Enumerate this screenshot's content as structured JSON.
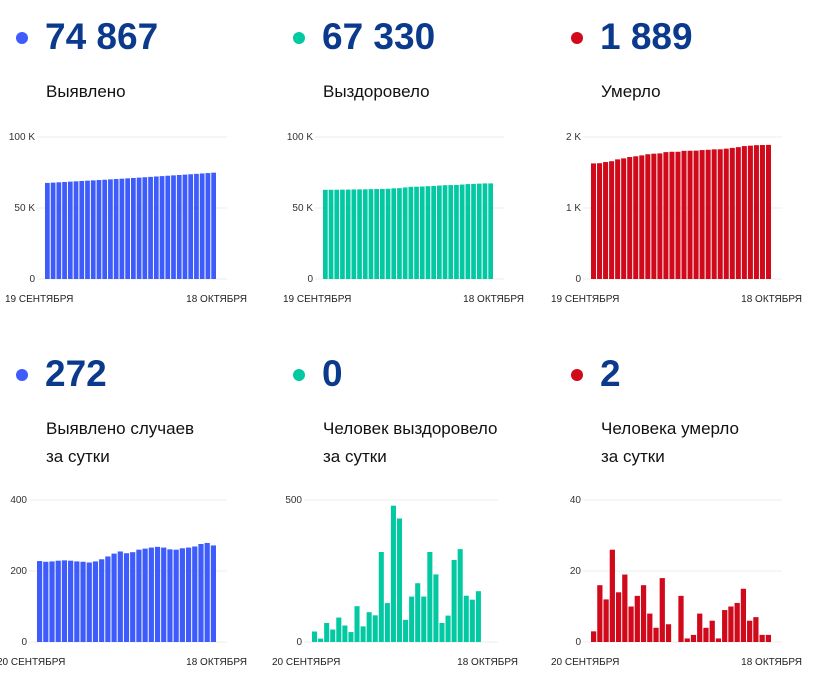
{
  "colors": {
    "confirmed": "#3d5cfb",
    "recovered": "#03c9a3",
    "deaths": "#d0091b",
    "number": "#0b3a8d"
  },
  "stats": [
    {
      "value": "74 867",
      "label": "Выявлено",
      "color": "confirmed"
    },
    {
      "value": "67 330",
      "label": "Выздоровело",
      "color": "recovered"
    },
    {
      "value": "1 889",
      "label": "Умерло",
      "color": "deaths"
    },
    {
      "value": "272",
      "label": "Выявлено случаев",
      "label2": "за сутки",
      "color": "confirmed"
    },
    {
      "value": "0",
      "label": "Человек выздоровело",
      "label2": "за сутки",
      "color": "recovered"
    },
    {
      "value": "2",
      "label": "Человека умерло",
      "label2": "за сутки",
      "color": "deaths"
    }
  ],
  "chart_data": [
    {
      "type": "bar",
      "color": "confirmed",
      "ylim": [
        0,
        100000
      ],
      "yticks": [
        {
          "v": 0,
          "t": "0"
        },
        {
          "v": 50000,
          "t": "50 K"
        },
        {
          "v": 100000,
          "t": "100 K"
        }
      ],
      "x_start": "19 СЕНТЯБРЯ",
      "x_end": "18 ОКТЯБРЯ",
      "values": [
        67643,
        67871,
        68097,
        68324,
        68553,
        68783,
        69012,
        69239,
        69465,
        69689,
        69916,
        70149,
        70390,
        70639,
        70894,
        71144,
        71397,
        71657,
        71920,
        72186,
        72454,
        72720,
        72981,
        73241,
        73505,
        73771,
        74040,
        74316,
        74595,
        74867
      ]
    },
    {
      "type": "bar",
      "color": "recovered",
      "ylim": [
        0,
        100000
      ],
      "yticks": [
        {
          "v": 0,
          "t": "0"
        },
        {
          "v": 50000,
          "t": "50 K"
        },
        {
          "v": 100000,
          "t": "100 K"
        }
      ],
      "x_start": "19 СЕНТЯБРЯ",
      "x_end": "18 ОКТЯБРЯ",
      "values": [
        62815,
        62852,
        62864,
        62931,
        62975,
        63061,
        63119,
        63154,
        63280,
        63335,
        63440,
        63534,
        63851,
        63988,
        64468,
        64903,
        64981,
        65141,
        65348,
        65508,
        65825,
        66063,
        66130,
        66223,
        66512,
        66839,
        67002,
        67151,
        67330,
        67330
      ]
    },
    {
      "type": "bar",
      "color": "deaths",
      "ylim": [
        0,
        2000
      ],
      "yticks": [
        {
          "v": 0,
          "t": "0"
        },
        {
          "v": 1000,
          "t": "1 K"
        },
        {
          "v": 2000,
          "t": "2 K"
        }
      ],
      "x_start": "19 СЕНТЯБРЯ",
      "x_end": "18 ОКТЯБРЯ",
      "values": [
        1628,
        1631,
        1647,
        1659,
        1685,
        1699,
        1718,
        1728,
        1741,
        1757,
        1765,
        1769,
        1787,
        1792,
        1792,
        1805,
        1806,
        1808,
        1816,
        1820,
        1826,
        1827,
        1836,
        1846,
        1857,
        1872,
        1878,
        1885,
        1887,
        1889
      ]
    },
    {
      "type": "bar",
      "color": "confirmed",
      "ylim": [
        0,
        400
      ],
      "yticks": [
        {
          "v": 0,
          "t": "0"
        },
        {
          "v": 200,
          "t": "200"
        },
        {
          "v": 400,
          "t": "400"
        }
      ],
      "x_start": "20 СЕНТЯБРЯ",
      "x_end": "18 ОКТЯБРЯ",
      "values": [
        228,
        226,
        227,
        229,
        230,
        229,
        227,
        226,
        224,
        227,
        233,
        241,
        249,
        255,
        250,
        253,
        260,
        263,
        266,
        268,
        266,
        261,
        260,
        264,
        266,
        269,
        276,
        279,
        272
      ]
    },
    {
      "type": "bar",
      "color": "recovered",
      "ylim": [
        0,
        500
      ],
      "yticks": [
        {
          "v": 0,
          "t": "0"
        },
        {
          "v": 500,
          "t": "500"
        }
      ],
      "x_start": "20 СЕНТЯБРЯ",
      "x_end": "18 ОКТЯБРЯ",
      "values": [
        37,
        12,
        67,
        44,
        86,
        58,
        35,
        126,
        55,
        105,
        94,
        317,
        137,
        480,
        435,
        78,
        160,
        207,
        160,
        317,
        238,
        67,
        93,
        289,
        327,
        163,
        149,
        179,
        0
      ]
    },
    {
      "type": "bar",
      "color": "deaths",
      "ylim": [
        0,
        40
      ],
      "yticks": [
        {
          "v": 0,
          "t": "0"
        },
        {
          "v": 20,
          "t": "20"
        },
        {
          "v": 40,
          "t": "40"
        }
      ],
      "x_start": "20 СЕНТЯБРЯ",
      "x_end": "18 ОКТЯБРЯ",
      "values": [
        3,
        16,
        12,
        26,
        14,
        19,
        10,
        13,
        16,
        8,
        4,
        18,
        5,
        0,
        13,
        1,
        2,
        8,
        4,
        6,
        1,
        9,
        10,
        11,
        15,
        6,
        7,
        2,
        2
      ]
    }
  ]
}
